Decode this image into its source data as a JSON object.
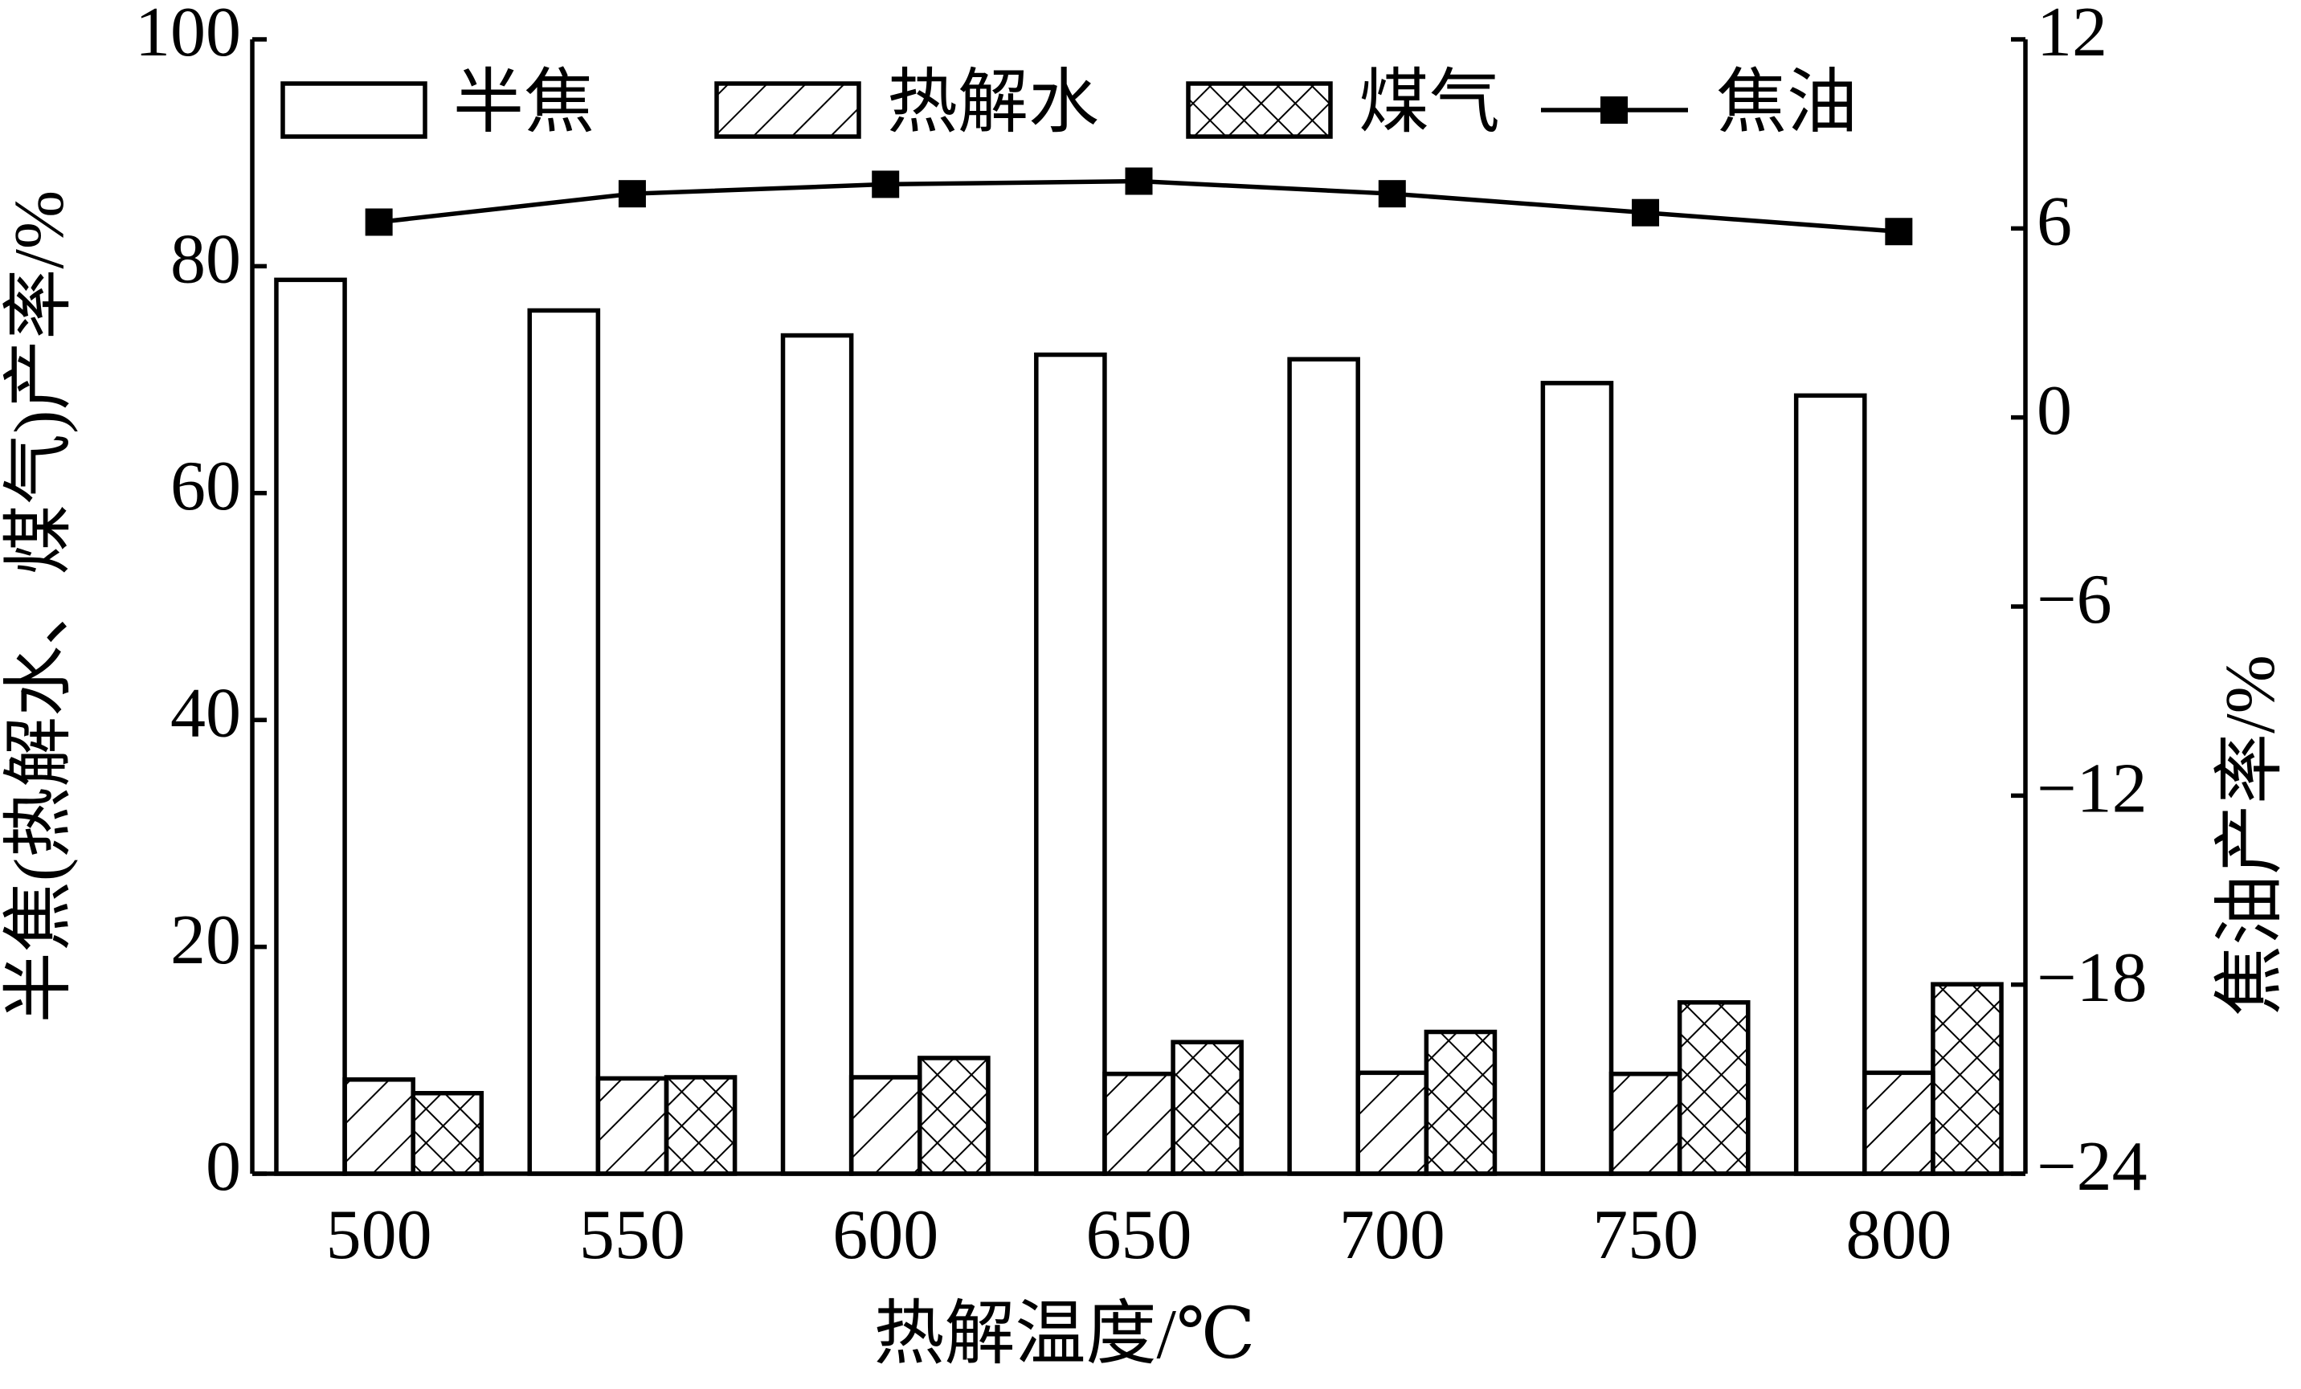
{
  "chart_data": {
    "type": "bar",
    "x_label": "热解温度/℃",
    "y_label": "半焦(热解水、煤气)产率/%",
    "y2_label": "焦油产率/%",
    "categories": [
      "500",
      "550",
      "600",
      "650",
      "700",
      "750",
      "800"
    ],
    "series": [
      {
        "name": "半焦",
        "color": "#ffffff",
        "hatch": "none",
        "values": [
          78.8,
          76.1,
          73.9,
          72.2,
          71.8,
          69.7,
          68.6
        ]
      },
      {
        "name": "热解水",
        "color": "#ffffff",
        "hatch": "diagonal",
        "values": [
          8.3,
          8.4,
          8.5,
          8.8,
          8.9,
          8.8,
          8.9
        ]
      },
      {
        "name": "煤气",
        "color": "#ffffff",
        "hatch": "cross",
        "values": [
          7.1,
          8.5,
          10.2,
          11.6,
          12.5,
          15.1,
          16.7
        ]
      },
      {
        "name": "焦油",
        "color": "#000000",
        "type": "line",
        "axis": "y2",
        "marker": "square",
        "values": [
          6.2,
          7.1,
          7.4,
          7.5,
          7.1,
          6.5,
          5.9
        ]
      }
    ],
    "ylim": [
      0,
      100
    ],
    "yticks": [
      0,
      20,
      40,
      60,
      80,
      100
    ],
    "y2lim": [
      -24,
      12
    ],
    "y2ticks": [
      {
        "value": -24,
        "label": "−24"
      },
      {
        "value": -18,
        "label": "−18"
      },
      {
        "value": -12,
        "label": "−12"
      },
      {
        "value": -6,
        "label": "−6"
      },
      0,
      6,
      12
    ],
    "grid": false,
    "legend": "top"
  }
}
